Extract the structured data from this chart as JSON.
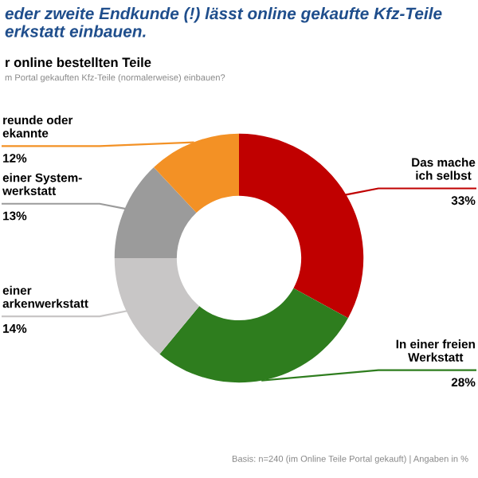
{
  "chart_data": {
    "type": "donut",
    "title": "eder zweite Endkunde (!) lässt online gekaufte Kfz-Teile\nerkstatt einbauen.",
    "subtitle": "r online bestellten Teile",
    "annotations": [
      "m Portal gekauften Kfz-Teile (normalerweise) einbauen?",
      "Basis: n=240 (im Online Teile Portal gekauft) | Angaben in %"
    ],
    "categories": [
      "Das mache\nich selbst",
      "In einer freien\nWerkstatt",
      "einer\narkenwerkstatt",
      "einer System-\nwerkstatt",
      "reunde oder\nekannte"
    ],
    "values": [
      33,
      28,
      14,
      13,
      12
    ],
    "value_labels": [
      "33%",
      "28%",
      "14%",
      "13%",
      "12%"
    ],
    "colors": [
      "#c00000",
      "#2e7d1e",
      "#c8c6c6",
      "#9b9b9b",
      "#f39125"
    ]
  }
}
